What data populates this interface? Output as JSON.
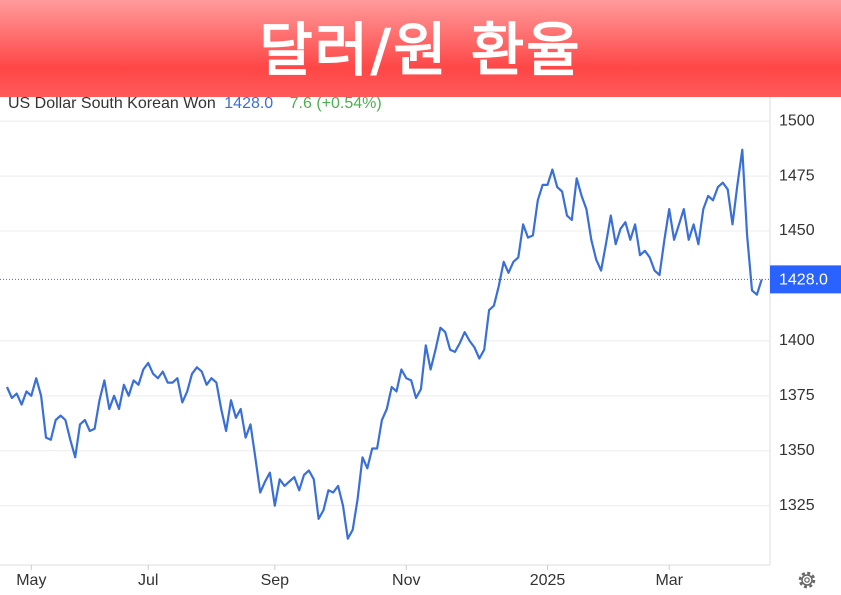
{
  "chart_data": {
    "type": "line",
    "title": "달러/원 환율",
    "change": "7.6 (+0.54%)",
    "current": {
      "value": 1428,
      "label": "1428.0"
    },
    "series": [
      {
        "name": "US Dollar South Korean Won",
        "color": "#3a6fd8",
        "values": [
          1379,
          1374,
          1376,
          1371,
          1377,
          1375,
          1383,
          1375,
          1356,
          1355,
          1364,
          1366,
          1364,
          1355,
          1347,
          1362,
          1364,
          1359,
          1360,
          1373,
          1382,
          1369,
          1375,
          1369,
          1380,
          1375,
          1382,
          1380,
          1387,
          1390,
          1385,
          1383,
          1386,
          1381,
          1381,
          1383,
          1372,
          1377,
          1385,
          1388,
          1386,
          1380,
          1383,
          1381,
          1369,
          1359,
          1373,
          1365,
          1369,
          1356,
          1362,
          1347,
          1331,
          1336,
          1340,
          1325,
          1337,
          1334,
          1336,
          1338,
          1332,
          1339,
          1341,
          1337,
          1319,
          1323,
          1332,
          1331,
          1334,
          1325,
          1310,
          1314,
          1328,
          1347,
          1342,
          1351,
          1351,
          1364,
          1369,
          1379,
          1377,
          1387,
          1383,
          1382,
          1374,
          1378,
          1398,
          1387,
          1396,
          1406,
          1404,
          1396,
          1395,
          1399,
          1404,
          1400,
          1397,
          1392,
          1396,
          1414,
          1416,
          1425,
          1436,
          1431,
          1436,
          1438,
          1453,
          1447,
          1448,
          1464,
          1471,
          1471,
          1478,
          1470,
          1468,
          1457,
          1455,
          1474,
          1466,
          1460,
          1446,
          1437,
          1432,
          1444,
          1457,
          1444,
          1451,
          1454,
          1446,
          1453,
          1439,
          1441,
          1438,
          1432,
          1430,
          1446,
          1460,
          1446,
          1453,
          1460,
          1446,
          1453,
          1444,
          1460,
          1466,
          1464,
          1470,
          1472,
          1469,
          1453,
          1471,
          1487,
          1448,
          1423,
          1421,
          1428
        ]
      }
    ],
    "xlim": [
      0,
      153
    ],
    "xticks": [
      {
        "value": 5,
        "label": "May"
      },
      {
        "value": 29,
        "label": "Jul"
      },
      {
        "value": 55,
        "label": "Sep"
      },
      {
        "value": 82,
        "label": "Nov"
      },
      {
        "value": 111,
        "label": "2025"
      },
      {
        "value": 136,
        "label": "Mar"
      }
    ],
    "ylim": [
      1298,
      1511
    ],
    "yticks": [
      1325,
      1350,
      1375,
      1400,
      1450,
      1475,
      1500
    ],
    "grid": true
  }
}
